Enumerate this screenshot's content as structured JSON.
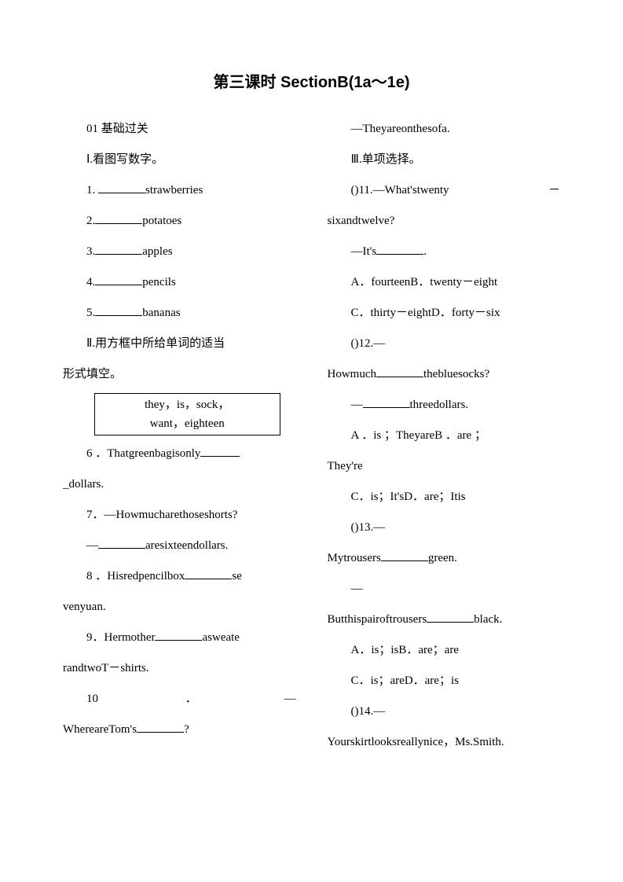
{
  "title": "第三课时 SectionB(1a～1e)",
  "left": {
    "sec0": "01 基础过关",
    "sec1": "Ⅰ.看图写数字。",
    "q1": "1. ",
    "q1b": "strawberries",
    "q2": "2.",
    "q2b": "potatoes",
    "q3": "3.",
    "q3b": "apples",
    "q4": "4.",
    "q4b": "pencils",
    "q5": "5.",
    "q5b": "bananas",
    "sec2a": "Ⅱ.用方框中所给单词的适当",
    "sec2b": "形式填空。",
    "box1": "they，is，sock，",
    "box2": "want，eighteen",
    "q6a": "6 ．Thatgreenbagisonly",
    "q6b": "_dollars.",
    "q7a": "7．—Howmucharethoseshorts?",
    "q7b": "—",
    "q7c": "aresixteendollars.",
    "q8a": "8 ．Hisredpencilbox",
    "q8b": "se",
    "q8c": "venyuan.",
    "q9a": "9．Hermother",
    "q9b": "asweate",
    "q9c": "randtwoT－shirts.",
    "q10a": "10",
    "q10dot": "．",
    "q10dash": "—",
    "q10b": "WhereareTom's",
    "q10c": "?"
  },
  "right": {
    "r0": "—Theyareonthesofa.",
    "sec3": "Ⅲ.单项选择。",
    "q11a": "()11.—What'stwenty",
    "q11dash": "－",
    "q11b": "sixandtwelve?",
    "q11c": "—It's",
    "q11d": ".",
    "q11e": "A．fourteenB．twenty－eight",
    "q11f": "C．thirty－eightD．forty－six",
    "q12a": "()12.—",
    "q12b": "Howmuch",
    "q12c": "thebluesocks?",
    "q12d": "—",
    "q12e": "threedollars.",
    "q12f": "A ．is ；TheyareB ．are ；",
    "q12g": "They're",
    "q12h": "C．is；It'sD．are；Itis",
    "q13a": "()13.—",
    "q13b": "Mytrousers",
    "q13c": "green.",
    "q13d": "—",
    "q13e": "Butthispairoftrousers",
    "q13f": "black.",
    "q13g": "A．is；isB．are；are",
    "q13h": "C．is；areD．are；is",
    "q14a": "()14.—",
    "q14b": "Yourskirtlooksreallynice，Ms.Smith."
  }
}
